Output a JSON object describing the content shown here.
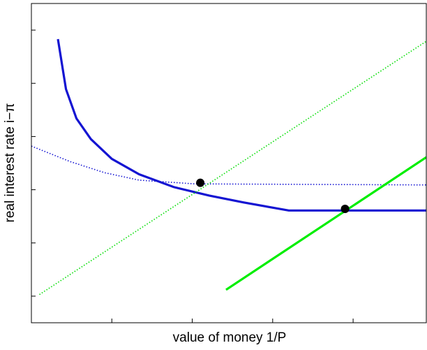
{
  "chart_data": {
    "type": "line",
    "x_label": "value of money 1/P",
    "y_label": "real interest rate i−π",
    "xlim": [
      0,
      4.91
    ],
    "ylim": [
      -0.5,
      5.5
    ],
    "xticks": [
      0,
      1,
      2,
      3,
      4
    ],
    "yticks": [
      0,
      1,
      2,
      3,
      4,
      5
    ],
    "series": [
      {
        "color": "#1414d2",
        "style": "solid",
        "x": [
          0.33,
          0.43,
          0.56,
          0.74,
          1.0,
          1.34,
          1.77,
          2.21,
          2.64,
          3.2,
          4.91
        ],
        "values": [
          4.83,
          3.89,
          3.34,
          2.95,
          2.58,
          2.29,
          2.05,
          1.89,
          1.76,
          1.61,
          1.61
        ]
      },
      {
        "color": "#1414d2",
        "style": "dotted",
        "x": [
          0,
          0.48,
          0.91,
          1.34,
          2.03,
          4.91
        ],
        "values": [
          2.82,
          2.53,
          2.32,
          2.18,
          2.11,
          2.09
        ]
      },
      {
        "color": "#00dd00",
        "style": "dotted",
        "x": [
          0.1,
          4.91
        ],
        "values": [
          0.03,
          4.79
        ]
      },
      {
        "color": "#00ee00",
        "style": "solid",
        "x": [
          2.42,
          4.91
        ],
        "values": [
          0.12,
          2.61
        ]
      },
      {
        "color": "#000000",
        "style": "markers",
        "x": [
          2.1,
          3.9
        ],
        "values": [
          2.13,
          1.64
        ]
      }
    ]
  }
}
